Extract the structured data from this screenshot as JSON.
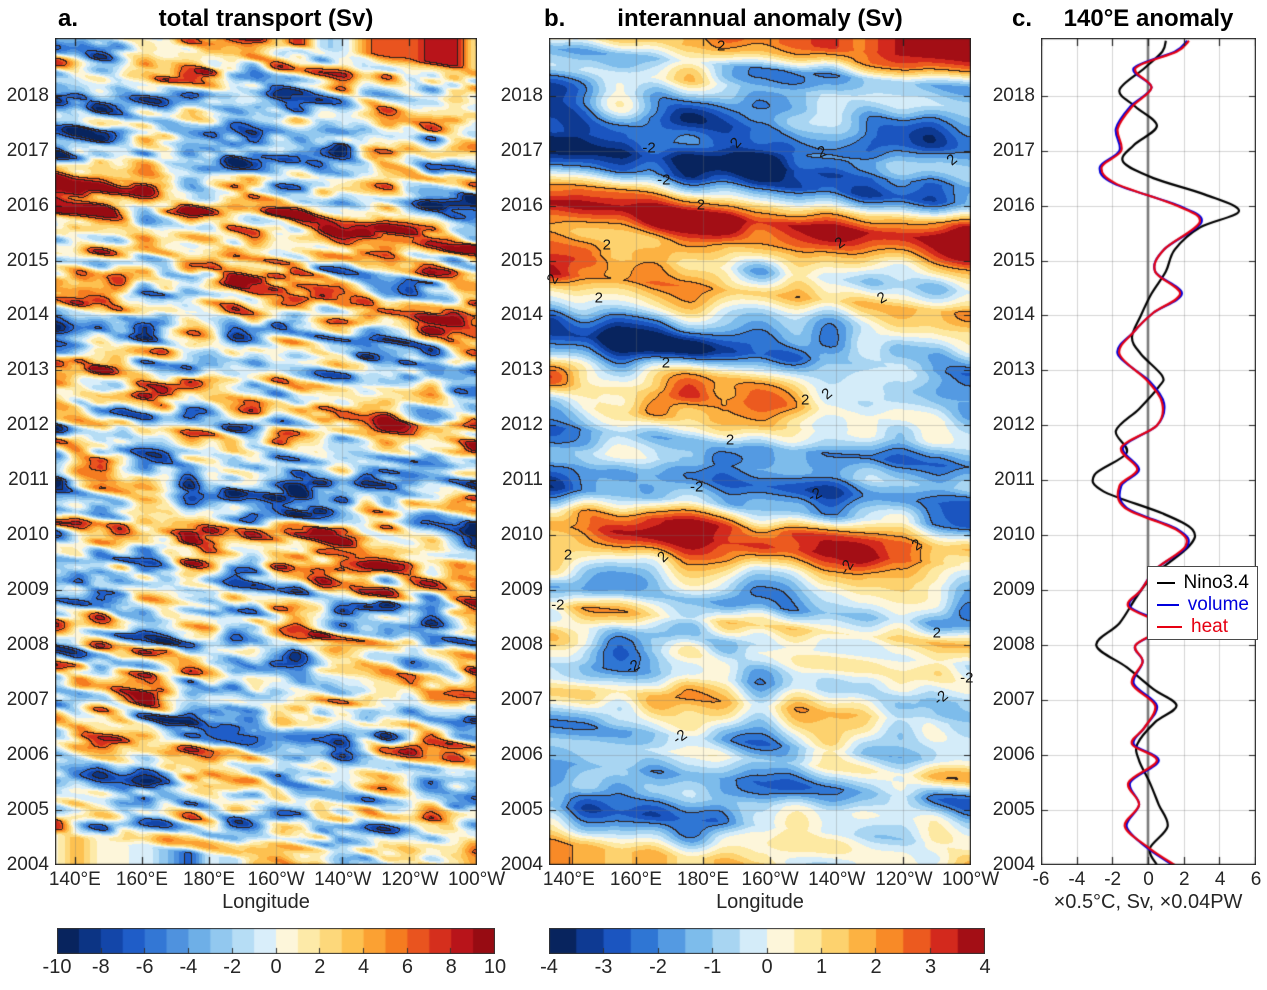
{
  "panels": {
    "a": {
      "tag": "a.",
      "title": "total transport (Sv)",
      "xlabel": "Longitude",
      "x_ticks": [
        "140°E",
        "160°E",
        "180°E",
        "160°W",
        "140°W",
        "120°W",
        "100°W"
      ],
      "y_ticks": [
        2004,
        2005,
        2006,
        2007,
        2008,
        2009,
        2010,
        2011,
        2012,
        2013,
        2014,
        2015,
        2016,
        2017,
        2018
      ],
      "colorbar_ticks": [
        "-10",
        "-8",
        "-6",
        "-4",
        "-2",
        "0",
        "2",
        "4",
        "6",
        "8",
        "10"
      ]
    },
    "b": {
      "tag": "b.",
      "title": "interannual anomaly (Sv)",
      "xlabel": "Longitude",
      "x_ticks": [
        "140°E",
        "160°E",
        "180°E",
        "160°W",
        "140°W",
        "120°W",
        "100°W"
      ],
      "y_ticks": [
        2004,
        2005,
        2006,
        2007,
        2008,
        2009,
        2010,
        2011,
        2012,
        2013,
        2014,
        2015,
        2016,
        2017,
        2018
      ],
      "colorbar_ticks": [
        "-4",
        "-3",
        "-2",
        "-1",
        "0",
        "1",
        "2",
        "3",
        "4"
      ]
    },
    "c": {
      "tag": "c.",
      "title": "140°E anomaly",
      "xlabel": "×0.5°C, Sv, ×0.04PW",
      "x_ticks": [
        "-6",
        "-4",
        "-2",
        "0",
        "2",
        "4",
        "6"
      ],
      "y_ticks": [
        2004,
        2005,
        2006,
        2007,
        2008,
        2009,
        2010,
        2011,
        2012,
        2013,
        2014,
        2015,
        2016,
        2017,
        2018
      ],
      "legend": [
        {
          "label": "Nino3.4",
          "color": "#000000"
        },
        {
          "label": "volume",
          "color": "#0000dd"
        },
        {
          "label": "heat",
          "color": "#e60012"
        }
      ],
      "zero_line_color": "#7a7a7a"
    }
  },
  "text_color": "#262626",
  "chart_data": [
    {
      "type": "heatmap",
      "panel": "a",
      "title": "total transport (Sv)",
      "xlabel": "Longitude",
      "x_tick_labels": [
        "140°E",
        "160°E",
        "180°E",
        "160°W",
        "140°W",
        "120°W",
        "100°W"
      ],
      "y_axis": "year",
      "y_range": [
        2004,
        2019
      ],
      "y_tick_labels": [
        2004,
        2005,
        2006,
        2007,
        2008,
        2009,
        2010,
        2011,
        2012,
        2013,
        2014,
        2015,
        2016,
        2017,
        2018
      ],
      "value_units": "Sv",
      "colorbar_range": [
        -10,
        10
      ],
      "colorbar_ticks": [
        -10,
        -8,
        -6,
        -4,
        -2,
        0,
        2,
        4,
        6,
        8,
        10
      ],
      "contour_levels_est": [
        -8,
        -6,
        6,
        8
      ],
      "colormap_colors": [
        "#08245e",
        "#0c3484",
        "#1346a9",
        "#1f5dc8",
        "#3377d5",
        "#4f92de",
        "#6eafe7",
        "#92c8ef",
        "#b6ddf5",
        "#d9eefa",
        "#fdf6da",
        "#fdeaa8",
        "#fdd87b",
        "#fdc150",
        "#fba133",
        "#f57c20",
        "#e9541f",
        "#d52f1d",
        "#b8141a",
        "#970b12"
      ]
    },
    {
      "type": "heatmap",
      "panel": "b",
      "title": "interannual anomaly (Sv)",
      "xlabel": "Longitude",
      "x_tick_labels": [
        "140°E",
        "160°E",
        "180°E",
        "160°W",
        "140°W",
        "120°W",
        "100°W"
      ],
      "y_axis": "year",
      "y_range": [
        2004,
        2019
      ],
      "y_tick_labels": [
        2004,
        2005,
        2006,
        2007,
        2008,
        2009,
        2010,
        2011,
        2012,
        2013,
        2014,
        2015,
        2016,
        2017,
        2018
      ],
      "value_units": "Sv",
      "colorbar_range": [
        -4,
        4
      ],
      "colorbar_ticks": [
        -4,
        -3,
        -2,
        -1,
        0,
        1,
        2,
        3,
        4
      ],
      "contour_levels": [
        -2,
        2
      ],
      "colormap_colors": [
        "#08245e",
        "#0e3a93",
        "#1b55c0",
        "#2f76d4",
        "#549ae2",
        "#7dbceb",
        "#a8d5f2",
        "#d4ecf9",
        "#fdf6da",
        "#fde9a2",
        "#fdd26e",
        "#fcb242",
        "#f88a27",
        "#ec5a1f",
        "#d3291d",
        "#a30e15"
      ],
      "contour_labels": [
        {
          "text": "2",
          "x": 0.408,
          "y": 0.01,
          "rot": 0
        },
        {
          "text": "-2",
          "x": 0.237,
          "y": 0.133,
          "rot": 0
        },
        {
          "text": "2",
          "x": 0.443,
          "y": 0.127,
          "rot": -50
        },
        {
          "text": "2",
          "x": 0.647,
          "y": 0.138,
          "rot": -20
        },
        {
          "text": "2",
          "x": 0.955,
          "y": 0.148,
          "rot": -40
        },
        {
          "text": "-2",
          "x": 0.272,
          "y": 0.172,
          "rot": 0
        },
        {
          "text": "2",
          "x": 0.36,
          "y": 0.202,
          "rot": 0
        },
        {
          "text": "2",
          "x": 0.137,
          "y": 0.25,
          "rot": 0
        },
        {
          "text": "2",
          "x": 0.69,
          "y": 0.248,
          "rot": -35
        },
        {
          "text": "2",
          "x": 0.01,
          "y": 0.292,
          "rot": -60
        },
        {
          "text": "2",
          "x": 0.118,
          "y": 0.314,
          "rot": 0
        },
        {
          "text": "2",
          "x": 0.789,
          "y": 0.314,
          "rot": -30
        },
        {
          "text": "2",
          "x": 0.277,
          "y": 0.393,
          "rot": 0
        },
        {
          "text": "2",
          "x": 0.607,
          "y": 0.438,
          "rot": 0
        },
        {
          "text": "2",
          "x": 0.659,
          "y": 0.43,
          "rot": -40
        },
        {
          "text": "2",
          "x": 0.429,
          "y": 0.486,
          "rot": 0
        },
        {
          "text": "-2",
          "x": 0.35,
          "y": 0.543,
          "rot": 0
        },
        {
          "text": "-2",
          "x": 0.63,
          "y": 0.553,
          "rot": -30
        },
        {
          "text": "2",
          "x": 0.045,
          "y": 0.625,
          "rot": 0
        },
        {
          "text": "2",
          "x": 0.27,
          "y": 0.628,
          "rot": -45
        },
        {
          "text": "2",
          "x": 0.872,
          "y": 0.613,
          "rot": -35
        },
        {
          "text": "-2",
          "x": 0.706,
          "y": 0.64,
          "rot": -60
        },
        {
          "text": "-2",
          "x": 0.021,
          "y": 0.686,
          "rot": 0
        },
        {
          "text": "2",
          "x": 0.919,
          "y": 0.719,
          "rot": 0
        },
        {
          "text": "-2",
          "x": 0.199,
          "y": 0.761,
          "rot": -30
        },
        {
          "text": "-2",
          "x": 0.99,
          "y": 0.774,
          "rot": 0
        },
        {
          "text": "-2",
          "x": 0.93,
          "y": 0.798,
          "rot": -40
        },
        {
          "text": "-2",
          "x": 0.31,
          "y": 0.845,
          "rot": -35
        }
      ]
    },
    {
      "type": "line",
      "panel": "c",
      "title": "140°E anomaly",
      "xlabel": "×0.5°C, Sv, ×0.04PW",
      "xlim": [
        -6,
        6
      ],
      "x_ticks": [
        -6,
        -4,
        -2,
        0,
        2,
        4,
        6
      ],
      "y_axis": "year",
      "y_range": [
        2004,
        2019
      ],
      "grid": true,
      "legend_position": "middle-right",
      "zero_line": 0,
      "series": [
        {
          "name": "Nino3.4",
          "color": "#000000",
          "points": [
            [
              2004.0,
              0.5
            ],
            [
              2004.3,
              0.1
            ],
            [
              2004.7,
              1.1
            ],
            [
              2005.1,
              0.6
            ],
            [
              2005.5,
              0.1
            ],
            [
              2005.9,
              -0.5
            ],
            [
              2006.2,
              -0.6
            ],
            [
              2006.6,
              0.4
            ],
            [
              2006.9,
              1.6
            ],
            [
              2007.2,
              0.3
            ],
            [
              2007.6,
              -1.2
            ],
            [
              2008.0,
              -2.9
            ],
            [
              2008.4,
              -1.6
            ],
            [
              2008.9,
              -0.6
            ],
            [
              2009.3,
              0.4
            ],
            [
              2009.8,
              2.3
            ],
            [
              2010.1,
              2.5
            ],
            [
              2010.4,
              0.8
            ],
            [
              2010.8,
              -2.5
            ],
            [
              2011.1,
              -3.0
            ],
            [
              2011.5,
              -1.2
            ],
            [
              2011.9,
              -1.8
            ],
            [
              2012.3,
              -0.5
            ],
            [
              2012.7,
              0.6
            ],
            [
              2012.9,
              0.8
            ],
            [
              2013.3,
              -0.4
            ],
            [
              2013.6,
              -0.9
            ],
            [
              2014.0,
              -0.4
            ],
            [
              2014.4,
              0.2
            ],
            [
              2014.8,
              1.0
            ],
            [
              2015.2,
              1.5
            ],
            [
              2015.6,
              2.9
            ],
            [
              2015.9,
              5.1
            ],
            [
              2016.2,
              3.2
            ],
            [
              2016.5,
              0.3
            ],
            [
              2016.8,
              -1.4
            ],
            [
              2017.1,
              -0.8
            ],
            [
              2017.45,
              0.5
            ],
            [
              2017.8,
              -0.7
            ],
            [
              2018.1,
              -1.6
            ],
            [
              2018.5,
              -0.2
            ],
            [
              2018.8,
              0.8
            ],
            [
              2019.0,
              1.0
            ]
          ]
        },
        {
          "name": "volume",
          "color": "#0000dd",
          "points": [
            [
              2004.0,
              1.4
            ],
            [
              2004.3,
              0.0
            ],
            [
              2004.7,
              -1.2
            ],
            [
              2005.1,
              -0.5
            ],
            [
              2005.5,
              -1.0
            ],
            [
              2005.9,
              0.6
            ],
            [
              2006.2,
              -0.8
            ],
            [
              2006.5,
              -0.2
            ],
            [
              2006.9,
              0.5
            ],
            [
              2007.3,
              -0.8
            ],
            [
              2007.7,
              -0.3
            ],
            [
              2008.0,
              -0.7
            ],
            [
              2008.35,
              0.9
            ],
            [
              2008.7,
              -1.0
            ],
            [
              2009.0,
              -0.4
            ],
            [
              2009.4,
              0.5
            ],
            [
              2009.8,
              2.2
            ],
            [
              2010.1,
              1.7
            ],
            [
              2010.5,
              -1.2
            ],
            [
              2010.9,
              -1.5
            ],
            [
              2011.2,
              -0.5
            ],
            [
              2011.6,
              -1.4
            ],
            [
              2012.0,
              0.5
            ],
            [
              2012.4,
              0.9
            ],
            [
              2012.8,
              0.1
            ],
            [
              2013.3,
              -1.7
            ],
            [
              2013.7,
              -0.8
            ],
            [
              2014.05,
              0.3
            ],
            [
              2014.4,
              1.9
            ],
            [
              2014.8,
              0.4
            ],
            [
              2015.2,
              0.9
            ],
            [
              2015.7,
              3.0
            ],
            [
              2016.0,
              1.7
            ],
            [
              2016.4,
              -1.9
            ],
            [
              2016.7,
              -2.7
            ],
            [
              2017.0,
              -1.6
            ],
            [
              2017.4,
              -1.8
            ],
            [
              2017.8,
              -1.0
            ],
            [
              2018.15,
              0.2
            ],
            [
              2018.5,
              -0.8
            ],
            [
              2018.8,
              1.5
            ],
            [
              2019.0,
              2.2
            ]
          ]
        },
        {
          "name": "heat",
          "color": "#e60012",
          "points": [
            [
              2004.0,
              1.5
            ],
            [
              2004.3,
              0.1
            ],
            [
              2004.7,
              -1.3
            ],
            [
              2005.1,
              -0.5
            ],
            [
              2005.5,
              -1.1
            ],
            [
              2005.9,
              0.5
            ],
            [
              2006.2,
              -0.9
            ],
            [
              2006.5,
              -0.2
            ],
            [
              2006.9,
              0.4
            ],
            [
              2007.3,
              -0.9
            ],
            [
              2007.7,
              -0.3
            ],
            [
              2008.0,
              -0.7
            ],
            [
              2008.35,
              0.8
            ],
            [
              2008.7,
              -1.1
            ],
            [
              2009.0,
              -0.4
            ],
            [
              2009.4,
              0.5
            ],
            [
              2009.8,
              2.1
            ],
            [
              2010.1,
              1.6
            ],
            [
              2010.5,
              -1.3
            ],
            [
              2010.9,
              -1.6
            ],
            [
              2011.2,
              -0.6
            ],
            [
              2011.6,
              -1.5
            ],
            [
              2012.0,
              0.5
            ],
            [
              2012.4,
              0.8
            ],
            [
              2012.8,
              0.0
            ],
            [
              2013.3,
              -1.6
            ],
            [
              2013.7,
              -0.8
            ],
            [
              2014.05,
              0.3
            ],
            [
              2014.4,
              1.8
            ],
            [
              2014.8,
              0.4
            ],
            [
              2015.2,
              0.9
            ],
            [
              2015.7,
              2.9
            ],
            [
              2016.0,
              1.6
            ],
            [
              2016.4,
              -1.8
            ],
            [
              2016.7,
              -2.6
            ],
            [
              2017.0,
              -1.5
            ],
            [
              2017.4,
              -1.7
            ],
            [
              2017.8,
              -0.9
            ],
            [
              2018.15,
              0.2
            ],
            [
              2018.5,
              -0.7
            ],
            [
              2018.8,
              1.6
            ],
            [
              2019.0,
              2.3
            ]
          ]
        }
      ]
    }
  ]
}
